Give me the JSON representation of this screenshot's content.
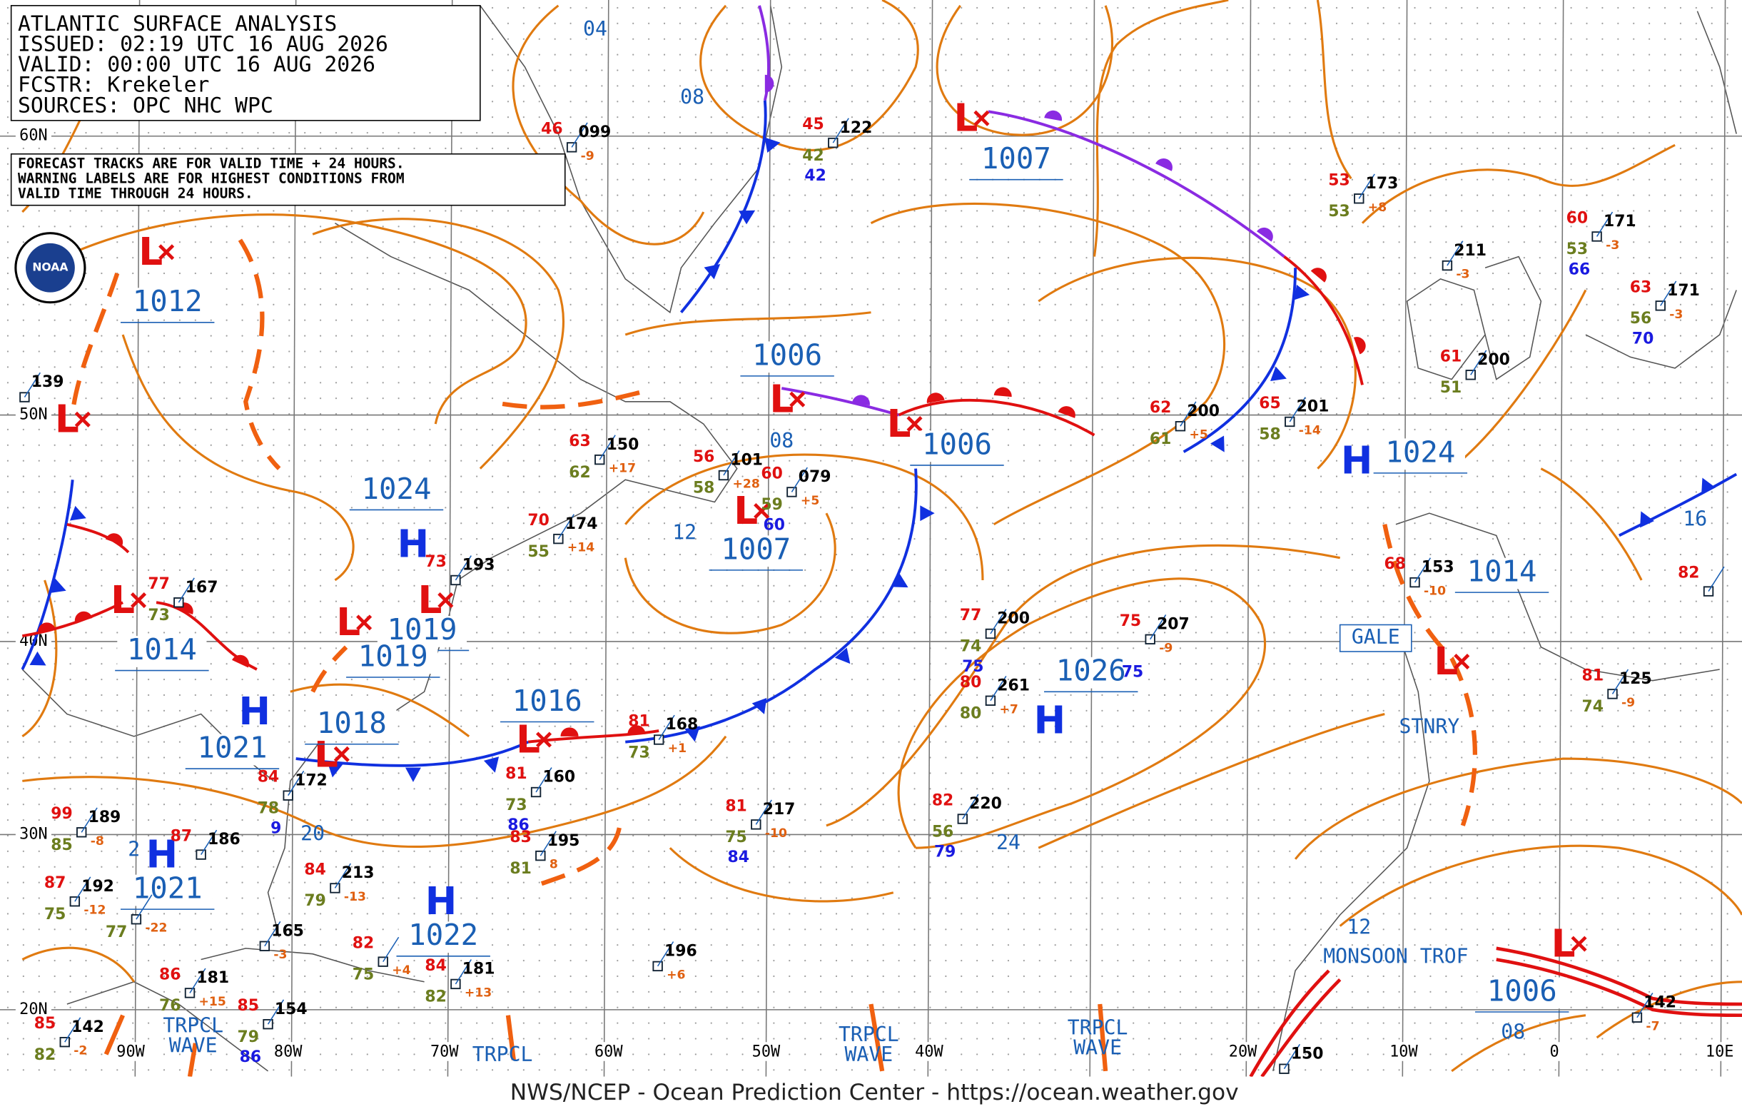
{
  "header": {
    "lines": [
      "ATLANTIC SURFACE ANALYSIS",
      "ISSUED: 02:19 UTC 16 AUG 2026",
      "VALID:  00:00 UTC 16 AUG 2026",
      "FCSTR:  Krekeler",
      "SOURCES: OPC NHC WPC"
    ]
  },
  "note": {
    "lines": [
      "FORECAST TRACKS ARE FOR VALID TIME + 24 HOURS.",
      "WARNING LABELS ARE FOR HIGHEST CONDITIONS FROM",
      "VALID TIME THROUGH 24 HOURS."
    ]
  },
  "logo": "NOAA",
  "grid_labels": {
    "lat": [
      "60N",
      "50N",
      "40N",
      "30N",
      "20N"
    ],
    "lon": [
      "90W",
      "80W",
      "70W",
      "60W",
      "50W",
      "40W",
      "20W",
      "10W",
      "0",
      "10E"
    ]
  },
  "pressure_centers": [
    {
      "symbol": "L",
      "pressure": "1012"
    },
    {
      "symbol": "L"
    },
    {
      "symbol": "L",
      "pressure": "1014"
    },
    {
      "symbol": "H",
      "pressure": "1024"
    },
    {
      "symbol": "L",
      "pressure": "1019"
    },
    {
      "symbol": "L",
      "pressure": "1019"
    },
    {
      "symbol": "L",
      "pressure": "1018"
    },
    {
      "symbol": "H",
      "pressure": "1021"
    },
    {
      "symbol": "H",
      "pressure": "1021"
    },
    {
      "symbol": "H",
      "pressure": "1022"
    },
    {
      "symbol": "L",
      "pressure": "1016"
    },
    {
      "symbol": "L",
      "pressure": "1006"
    },
    {
      "symbol": "L",
      "pressure": "1007"
    },
    {
      "symbol": "L",
      "pressure": "1007"
    },
    {
      "symbol": "L",
      "pressure": "1006"
    },
    {
      "symbol": "H",
      "pressure": "1026"
    },
    {
      "symbol": "H",
      "pressure": "1024"
    },
    {
      "symbol": "L",
      "pressure": "1014"
    },
    {
      "symbol": "L"
    },
    {
      "symbol": "L",
      "pressure": "1006"
    }
  ],
  "isobar_labels": [
    "04",
    "08",
    "08",
    "12",
    "20",
    "24",
    "16",
    "12",
    "08",
    "2"
  ],
  "annotations": [
    {
      "lines": [
        "GALE"
      ]
    },
    {
      "lines": [
        "STNRY"
      ]
    },
    {
      "lines": [
        "MONSOON TROF"
      ]
    },
    {
      "lines": [
        "TRPCL",
        "WAVE"
      ]
    },
    {
      "lines": [
        "TRPCL",
        "WAVE"
      ]
    },
    {
      "lines": [
        "TRPCL",
        "WAVE"
      ]
    },
    {
      "lines": [
        "TRPCL"
      ]
    }
  ],
  "stations": [
    {
      "pressure": "099",
      "temp": "46",
      "tendency": "-9"
    },
    {
      "pressure": "122",
      "temp": "45",
      "dewpoint": "42",
      "other": "42"
    },
    {
      "pressure": "173",
      "temp": "53",
      "dewpoint": "53",
      "tendency": "+8"
    },
    {
      "pressure": "171",
      "temp": "60",
      "dewpoint": "53",
      "other": "66",
      "tendency": "-3"
    },
    {
      "pressure": "211",
      "tendency": "-3"
    },
    {
      "pressure": "171",
      "temp": "63",
      "dewpoint": "56",
      "other": "70",
      "tendency": "-3"
    },
    {
      "pressure": "200",
      "temp": "61",
      "dewpoint": "51"
    },
    {
      "pressure": "200",
      "temp": "62",
      "dewpoint": "61",
      "tendency": "+5"
    },
    {
      "pressure": "201",
      "temp": "65",
      "dewpoint": "58",
      "tendency": "-14"
    },
    {
      "pressure": "139"
    },
    {
      "pressure": "150",
      "temp": "63",
      "dewpoint": "62",
      "tendency": "+17"
    },
    {
      "pressure": "101",
      "temp": "56",
      "dewpoint": "58",
      "tendency": "+28"
    },
    {
      "pressure": "079",
      "temp": "60",
      "dewpoint": "59",
      "other": "60",
      "tendency": "+5"
    },
    {
      "pressure": "174",
      "temp": "70",
      "dewpoint": "55",
      "tendency": "+14"
    },
    {
      "pressure": "193",
      "temp": "73"
    },
    {
      "pressure": "167",
      "temp": "77",
      "dewpoint": "73"
    },
    {
      "pressure": "200",
      "temp": "77",
      "dewpoint": "74",
      "other": "75"
    },
    {
      "pressure": "261",
      "temp": "80",
      "dewpoint": "80",
      "tendency": "+7"
    },
    {
      "pressure": "207",
      "temp": "75",
      "other": "75",
      "tendency": "-9"
    },
    {
      "pressure": "153",
      "temp": "68",
      "tendency": "-10"
    },
    {
      "pressure": "125",
      "temp": "81",
      "dewpoint": "74",
      "tendency": "-9"
    },
    {
      "pressure": "168",
      "temp": "81",
      "dewpoint": "73",
      "tendency": "+1"
    },
    {
      "pressure": "160",
      "temp": "81",
      "dewpoint": "73",
      "other": "86"
    },
    {
      "pressure": "172",
      "temp": "84",
      "dewpoint": "78",
      "other": "9"
    },
    {
      "pressure": "220",
      "temp": "82",
      "dewpoint": "56",
      "other": "79"
    },
    {
      "pressure": "217",
      "temp": "81",
      "dewpoint": "75",
      "other": "84",
      "tendency": "-10"
    },
    {
      "pressure": "195",
      "temp": "83",
      "dewpoint": "81",
      "tendency": "8"
    },
    {
      "pressure": "189",
      "temp": "99",
      "dewpoint": "85",
      "tendency": "-8"
    },
    {
      "pressure": "186",
      "temp": "87"
    },
    {
      "pressure": "213",
      "temp": "84",
      "dewpoint": "79",
      "tendency": "-13"
    },
    {
      "pressure": "192",
      "temp": "87",
      "dewpoint": "75",
      "tendency": "-12"
    },
    {
      "dewpoint": "77",
      "tendency": "-22"
    },
    {
      "pressure": "165",
      "tendency": "-3"
    },
    {
      "temp": "82",
      "dewpoint": "75",
      "tendency": "+4"
    },
    {
      "pressure": "181",
      "temp": "84",
      "dewpoint": "82",
      "tendency": "+13"
    },
    {
      "pressure": "196",
      "tendency": "+6"
    },
    {
      "pressure": "181",
      "temp": "86",
      "dewpoint": "76",
      "tendency": "+15"
    },
    {
      "pressure": "142",
      "temp": "85",
      "dewpoint": "82",
      "tendency": "-2"
    },
    {
      "pressure": "154",
      "temp": "85",
      "dewpoint": "79",
      "other": "86"
    },
    {
      "pressure": "150"
    },
    {
      "pressure": "142",
      "tendency": "-7"
    },
    {
      "temp": "82"
    }
  ],
  "footer": "NWS/NCEP - Ocean Prediction Center - https://ocean.weather.gov"
}
